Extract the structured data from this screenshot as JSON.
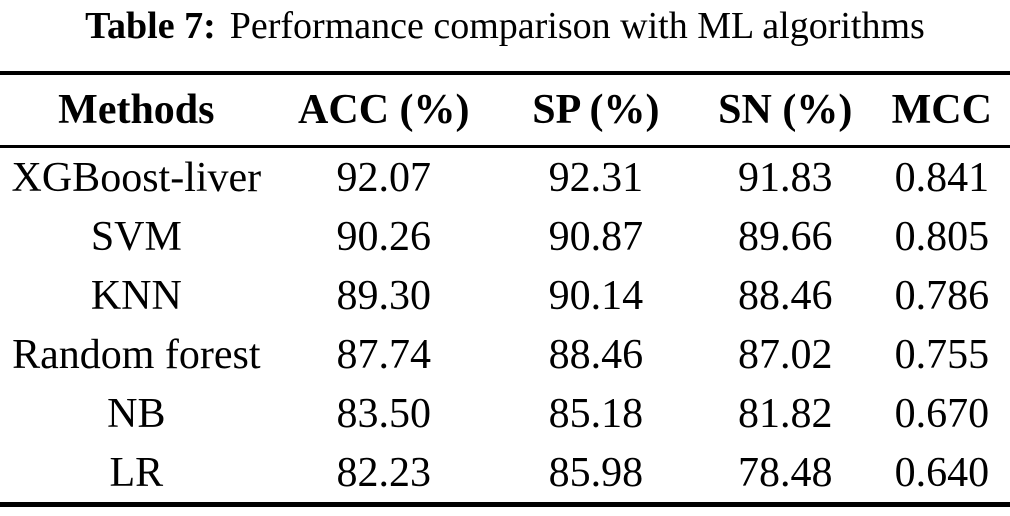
{
  "caption": {
    "label": "Table 7:",
    "text": "Performance comparison with ML algorithms"
  },
  "table": {
    "columns": [
      "Methods",
      "ACC (%)",
      "SP (%)",
      "SN (%)",
      "MCC"
    ],
    "rows": [
      [
        "XGBoost-liver",
        "92.07",
        "92.31",
        "91.83",
        "0.841"
      ],
      [
        "SVM",
        "90.26",
        "90.87",
        "89.66",
        "0.805"
      ],
      [
        "KNN",
        "89.30",
        "90.14",
        "88.46",
        "0.786"
      ],
      [
        "Random forest",
        "87.74",
        "88.46",
        "87.02",
        "0.755"
      ],
      [
        "NB",
        "83.50",
        "85.18",
        "81.82",
        "0.670"
      ],
      [
        "LR",
        "82.23",
        "85.98",
        "78.48",
        "0.640"
      ]
    ]
  },
  "chart_data": {
    "type": "table",
    "title": "Table 7: Performance comparison with ML algorithms",
    "columns": [
      "Methods",
      "ACC (%)",
      "SP (%)",
      "SN (%)",
      "MCC"
    ],
    "rows": [
      [
        "XGBoost-liver",
        92.07,
        92.31,
        91.83,
        0.841
      ],
      [
        "SVM",
        90.26,
        90.87,
        89.66,
        0.805
      ],
      [
        "KNN",
        89.3,
        90.14,
        88.46,
        0.786
      ],
      [
        "Random forest",
        87.74,
        88.46,
        87.02,
        0.755
      ],
      [
        "NB",
        83.5,
        85.18,
        81.82,
        0.67
      ],
      [
        "LR",
        82.23,
        85.98,
        78.48,
        0.64
      ]
    ]
  }
}
